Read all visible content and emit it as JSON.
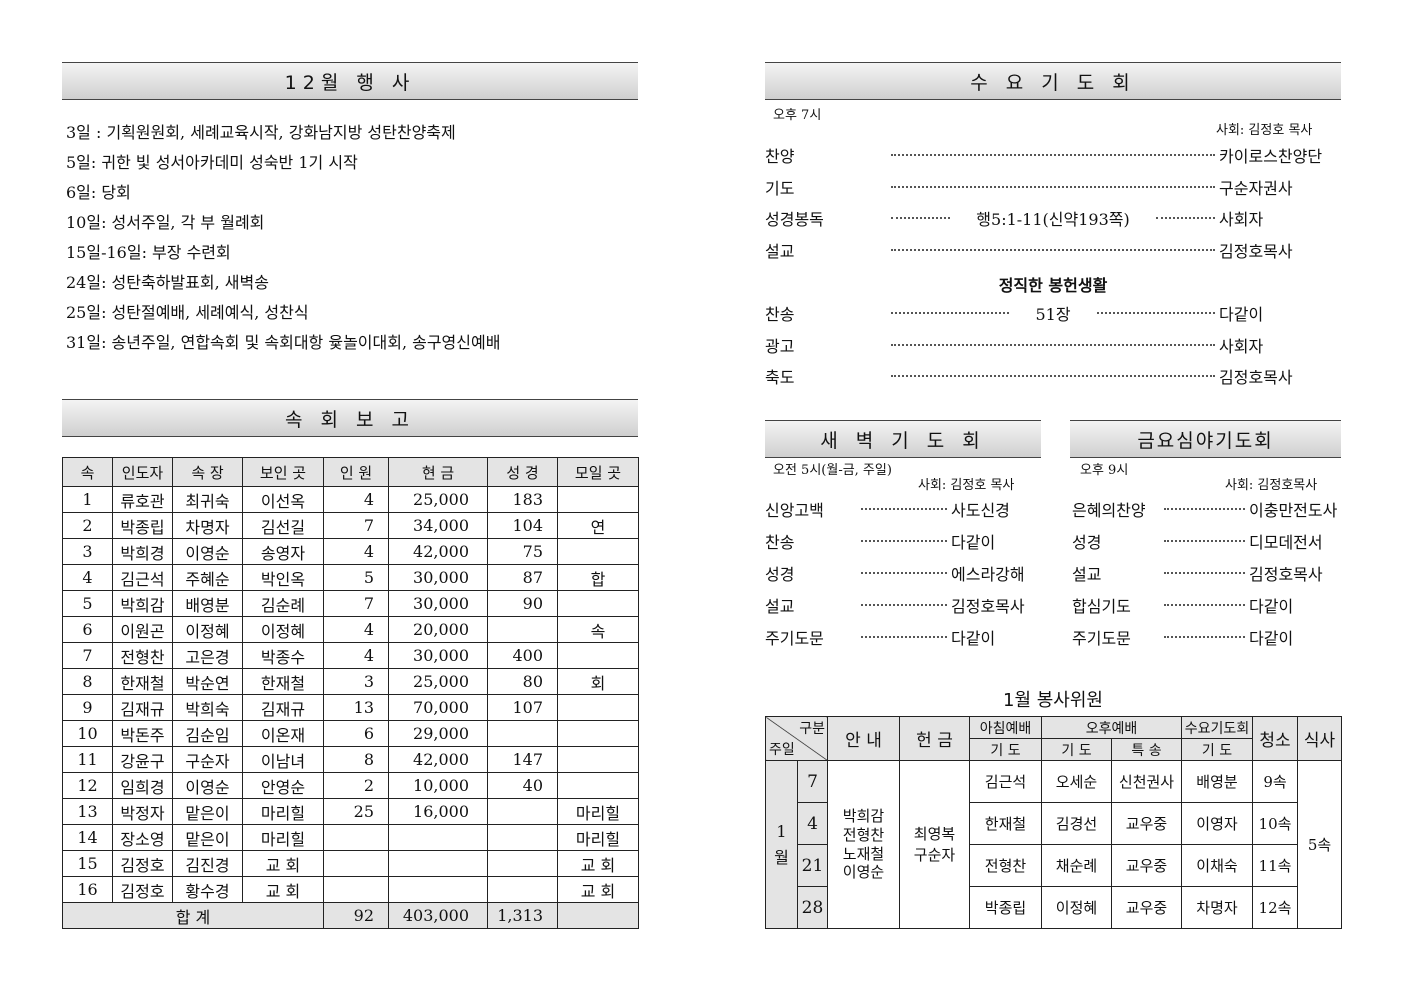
{
  "events": {
    "title": "12월  행 사",
    "items": [
      "3일 : 기획원원회, 세례교육시작, 강화남지방 성탄찬양축제",
      "5일: 귀한 빛 성서아카데미 성숙반 1기 시작",
      "6일: 당회",
      "10일: 성서주일, 각 부 월례회",
      "15일-16일: 부장 수련회",
      "24일: 성탄축하발표회, 새벽송",
      "25일: 성탄절예배, 세례예식, 성찬식",
      "31일: 송년주일, 연합속회 및 속회대항 윷놀이대회, 송구영신예배"
    ]
  },
  "report": {
    "title": "속 회 보 고",
    "headers": [
      "속",
      "인도자",
      "속 장",
      "보인 곳",
      "인 원",
      "현 금",
      "성 경",
      "모일 곳"
    ],
    "rows": [
      [
        "1",
        "류호관",
        "최귀숙",
        "이선옥",
        "4",
        "25,000",
        "183",
        ""
      ],
      [
        "2",
        "박종립",
        "차명자",
        "김선길",
        "7",
        "34,000",
        "104",
        "연"
      ],
      [
        "3",
        "박희경",
        "이영순",
        "송영자",
        "4",
        "42,000",
        "75",
        ""
      ],
      [
        "4",
        "김근석",
        "주혜순",
        "박인옥",
        "5",
        "30,000",
        "87",
        "합"
      ],
      [
        "5",
        "박희감",
        "배영분",
        "김순례",
        "7",
        "30,000",
        "90",
        ""
      ],
      [
        "6",
        "이원곤",
        "이정혜",
        "이정혜",
        "4",
        "20,000",
        "",
        "속"
      ],
      [
        "7",
        "전형찬",
        "고은경",
        "박종수",
        "4",
        "30,000",
        "400",
        ""
      ],
      [
        "8",
        "한재철",
        "박순연",
        "한재철",
        "3",
        "25,000",
        "80",
        "회"
      ],
      [
        "9",
        "김재규",
        "박희숙",
        "김재규",
        "13",
        "70,000",
        "107",
        ""
      ],
      [
        "10",
        "박돈주",
        "김순임",
        "이온재",
        "6",
        "29,000",
        "",
        ""
      ],
      [
        "11",
        "강윤구",
        "구순자",
        "이남녀",
        "8",
        "42,000",
        "147",
        ""
      ],
      [
        "12",
        "임희경",
        "이영순",
        "안영순",
        "2",
        "10,000",
        "40",
        ""
      ],
      [
        "13",
        "박정자",
        "맡은이",
        "마리힐",
        "25",
        "16,000",
        "",
        "마리힐"
      ],
      [
        "14",
        "장소영",
        "맡은이",
        "마리힐",
        "",
        "",
        "",
        "마리힐"
      ],
      [
        "15",
        "김정호",
        "김진경",
        "교  회",
        "",
        "",
        "",
        "교  회"
      ],
      [
        "16",
        "김정호",
        "황수경",
        "교  회",
        "",
        "",
        "",
        "교  회"
      ]
    ],
    "total": {
      "label": "합     계",
      "people": "92",
      "offering": "403,000",
      "bible": "1,313"
    }
  },
  "wed": {
    "title": "수 요 기 도 회",
    "time": "오후 7시",
    "host": "사회: 김정호 목사",
    "items": [
      {
        "k": "찬양",
        "v": "카이로스찬양단"
      },
      {
        "k": "기도",
        "v": "구순자권사"
      },
      {
        "k": "성경봉독",
        "mid": "행5:1-11(신약193쪽)",
        "v": "사회자"
      },
      {
        "k": "설교",
        "v": "김정호목사"
      }
    ],
    "subtitle": "정직한 봉헌생활",
    "items2": [
      {
        "k": "찬송",
        "mid": "51장",
        "v": "다같이"
      },
      {
        "k": "광고",
        "v": "사회자"
      },
      {
        "k": "축도",
        "v": "김정호목사"
      }
    ]
  },
  "dawn": {
    "title": "새 벽 기 도 회",
    "time": "오전 5시(월-금, 주일)",
    "host": "사회: 김정호 목사",
    "items": [
      {
        "k": "신앙고백",
        "v": "사도신경"
      },
      {
        "k": "찬송",
        "v": "다같이"
      },
      {
        "k": "성경",
        "v": "에스라강해"
      },
      {
        "k": "설교",
        "v": "김정호목사"
      },
      {
        "k": "주기도문",
        "v": "다같이"
      }
    ]
  },
  "friday": {
    "title": "금요심야기도회",
    "time": "오후 9시",
    "host": "사회: 김정호목사",
    "items": [
      {
        "k": "은혜의찬양",
        "v": "이충만전도사"
      },
      {
        "k": "성경",
        "v": "디모데전서"
      },
      {
        "k": "설교",
        "v": "김정호목사"
      },
      {
        "k": "합심기도",
        "v": "다같이"
      },
      {
        "k": "주기도문",
        "v": "다같이"
      }
    ]
  },
  "service": {
    "title": "1월 봉사위원",
    "corner_top": "구분",
    "corner_bottom": "주일",
    "h_guide": "안 내",
    "h_offering": "헌 금",
    "h_morning": "아침예배",
    "h_afternoon": "오후예배",
    "h_wed": "수요기도회",
    "h_clean": "청소",
    "h_meal": "식사",
    "h_pray": "기 도",
    "h_special": "특 송",
    "month": "1\n월",
    "guides": "박희감\n전형찬\n노재철\n이영순",
    "offering": "최영복\n구순자",
    "meal": "5속",
    "rows": [
      {
        "day": "7",
        "morning": "김근석",
        "aft_pray": "오세순",
        "special": "신천권사",
        "wed": "배영분",
        "clean": "9속"
      },
      {
        "day": "4",
        "morning": "한재철",
        "aft_pray": "김경선",
        "special": "교우중",
        "wed": "이영자",
        "clean": "10속"
      },
      {
        "day": "21",
        "morning": "전형찬",
        "aft_pray": "채순례",
        "special": "교우중",
        "wed": "이채숙",
        "clean": "11속"
      },
      {
        "day": "28",
        "morning": "박종립",
        "aft_pray": "이정혜",
        "special": "교우중",
        "wed": "차명자",
        "clean": "12속"
      }
    ]
  }
}
